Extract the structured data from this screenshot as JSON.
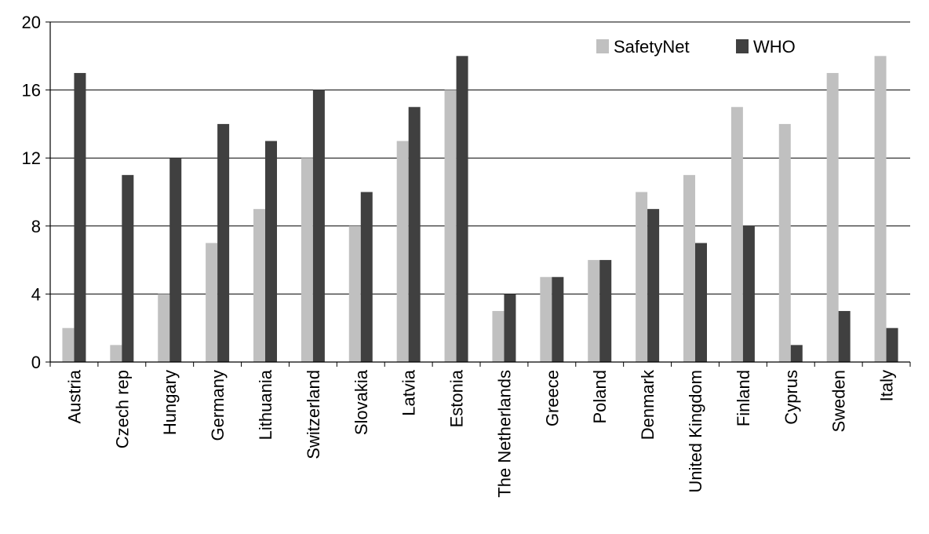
{
  "chart_data": {
    "type": "bar",
    "categories": [
      "Austria",
      "Czech rep",
      "Hungary",
      "Germany",
      "Lithuania",
      "Switzerland",
      "Slovakia",
      "Latvia",
      "Estonia",
      "The Netherlands",
      "Greece",
      "Poland",
      "Denmark",
      "United Kingdom",
      "Finland",
      "Cyprus",
      "Sweden",
      "Italy"
    ],
    "series": [
      {
        "name": "SafetyNet",
        "color": "#c0c0c0",
        "values": [
          2,
          1,
          4,
          7,
          9,
          12,
          8,
          13,
          16,
          3,
          5,
          6,
          10,
          11,
          15,
          14,
          17,
          18
        ]
      },
      {
        "name": "WHO",
        "color": "#404040",
        "values": [
          17,
          11,
          12,
          14,
          13,
          16,
          10,
          15,
          18,
          4,
          5,
          6,
          9,
          7,
          8,
          1,
          3,
          2
        ]
      }
    ],
    "yticks": [
      "0",
      "4",
      "8",
      "12",
      "16",
      "20"
    ],
    "ylim": [
      0,
      20
    ],
    "grid": true,
    "legend_position": "top-right",
    "title": "",
    "xlabel": "",
    "ylabel": ""
  }
}
